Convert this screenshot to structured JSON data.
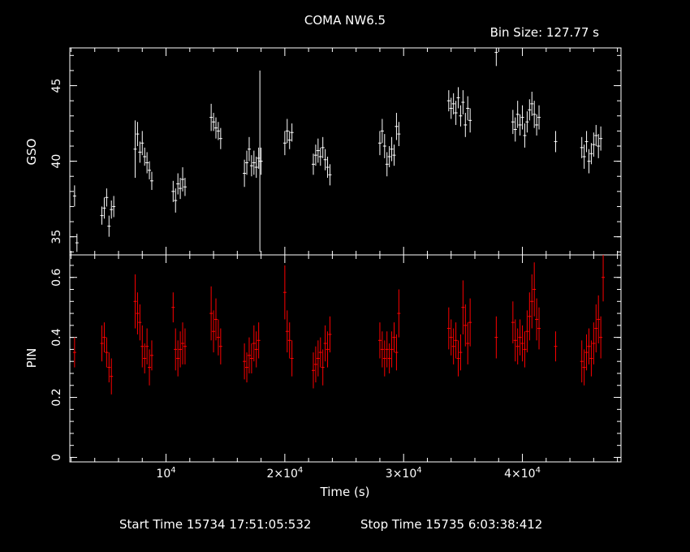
{
  "title": "COMA NW6.5",
  "bin_size_text": "Bin Size:  127.77 s",
  "footer": {
    "start": "Start Time 15734 17:51:05:532",
    "stop": "Stop Time 15735  6:03:38:412"
  },
  "colors": {
    "background": "#000000",
    "gso": "#ffffff",
    "pin": "#ff0000",
    "frame": "#ffffff"
  },
  "chart_data": [
    {
      "type": "scatter",
      "name": "gso-panel",
      "ylabel": "GSO",
      "ylim": [
        33.8,
        47.5
      ],
      "xlim": [
        1900,
        48300
      ],
      "yticks": [
        35,
        40,
        45
      ],
      "series": [
        {
          "points": [
            [
              2300,
              37.7,
              0.7
            ],
            [
              2500,
              34.6,
              0.6
            ],
            [
              4600,
              36.4,
              0.6
            ],
            [
              4800,
              36.9,
              0.7
            ],
            [
              5000,
              37.6,
              0.6
            ],
            [
              5200,
              35.7,
              0.7
            ],
            [
              5400,
              36.8,
              0.6
            ],
            [
              5600,
              37.0,
              0.7
            ],
            [
              7400,
              40.8,
              1.9
            ],
            [
              7600,
              41.8,
              0.8
            ],
            [
              7800,
              40.6,
              0.7
            ],
            [
              8000,
              41.2,
              0.8
            ],
            [
              8200,
              40.3,
              0.6
            ],
            [
              8400,
              39.9,
              0.7
            ],
            [
              8600,
              39.4,
              0.6
            ],
            [
              8800,
              38.7,
              0.6
            ],
            [
              10600,
              38.0,
              0.7
            ],
            [
              10800,
              37.4,
              0.8
            ],
            [
              11000,
              38.5,
              0.7
            ],
            [
              11200,
              38.2,
              0.7
            ],
            [
              11400,
              38.8,
              0.8
            ],
            [
              11600,
              38.3,
              0.6
            ],
            [
              13800,
              42.9,
              0.9
            ],
            [
              14000,
              42.6,
              0.6
            ],
            [
              14200,
              42.2,
              0.7
            ],
            [
              14400,
              42.0,
              0.6
            ],
            [
              14600,
              41.5,
              0.7
            ],
            [
              16600,
              39.2,
              0.9
            ],
            [
              16800,
              39.9,
              0.8
            ],
            [
              17000,
              40.8,
              0.8
            ],
            [
              17200,
              39.7,
              0.7
            ],
            [
              17400,
              39.9,
              0.8
            ],
            [
              17600,
              39.6,
              0.7
            ],
            [
              17800,
              40.2,
              0.7
            ],
            [
              18000,
              40.0,
              0.9
            ],
            [
              17900,
              40.0,
              6.0
            ],
            [
              20000,
              41.2,
              0.8
            ],
            [
              20200,
              42.0,
              0.8
            ],
            [
              20400,
              41.4,
              0.6
            ],
            [
              20600,
              41.9,
              0.6
            ],
            [
              22400,
              39.8,
              0.7
            ],
            [
              22600,
              40.4,
              0.7
            ],
            [
              22800,
              40.7,
              0.8
            ],
            [
              23000,
              40.3,
              0.6
            ],
            [
              23200,
              40.9,
              0.7
            ],
            [
              23400,
              40.1,
              0.7
            ],
            [
              23600,
              39.6,
              0.7
            ],
            [
              23800,
              39.1,
              0.7
            ],
            [
              28000,
              41.2,
              0.8
            ],
            [
              28200,
              42.0,
              0.8
            ],
            [
              28400,
              41.0,
              0.8
            ],
            [
              28600,
              39.8,
              0.8
            ],
            [
              28800,
              40.3,
              0.7
            ],
            [
              29000,
              40.8,
              0.8
            ],
            [
              29200,
              40.4,
              0.7
            ],
            [
              29400,
              42.3,
              0.9
            ],
            [
              29600,
              41.8,
              0.8
            ],
            [
              33800,
              44.0,
              0.7
            ],
            [
              34000,
              43.5,
              0.7
            ],
            [
              34200,
              43.8,
              0.7
            ],
            [
              34400,
              43.2,
              0.8
            ],
            [
              34600,
              44.2,
              0.7
            ],
            [
              34800,
              43.0,
              0.7
            ],
            [
              35000,
              43.9,
              0.8
            ],
            [
              35200,
              42.4,
              0.8
            ],
            [
              35400,
              43.5,
              0.8
            ],
            [
              35600,
              42.7,
              0.8
            ],
            [
              37800,
              47.2,
              0.9
            ],
            [
              39200,
              42.6,
              0.8
            ],
            [
              39400,
              42.1,
              0.8
            ],
            [
              39600,
              43.1,
              0.9
            ],
            [
              39800,
              42.4,
              0.7
            ],
            [
              40000,
              42.9,
              0.8
            ],
            [
              40200,
              41.7,
              0.8
            ],
            [
              40400,
              42.6,
              0.7
            ],
            [
              40600,
              43.4,
              0.7
            ],
            [
              40800,
              43.8,
              0.8
            ],
            [
              41000,
              43.1,
              0.9
            ],
            [
              41200,
              42.4,
              0.7
            ],
            [
              41400,
              42.9,
              0.8
            ],
            [
              42800,
              41.3,
              0.7
            ],
            [
              45000,
              40.9,
              0.7
            ],
            [
              45200,
              40.3,
              0.8
            ],
            [
              45400,
              41.3,
              0.7
            ],
            [
              45600,
              40.0,
              0.8
            ],
            [
              45800,
              40.5,
              0.7
            ],
            [
              46000,
              41.1,
              0.8
            ],
            [
              46200,
              41.7,
              0.7
            ],
            [
              46400,
              41.0,
              0.8
            ],
            [
              46600,
              41.5,
              0.8
            ]
          ]
        }
      ]
    },
    {
      "type": "scatter",
      "name": "pin-panel",
      "ylabel": "PIN",
      "xlabel": "Time (s)",
      "ylim": [
        -0.015,
        0.675
      ],
      "xlim": [
        1900,
        48300
      ],
      "yticks": [
        0,
        0.2,
        0.4,
        0.6
      ],
      "yticklabels": [
        "0",
        "0.2",
        "0.4",
        "0.6"
      ],
      "xticks": [
        10000,
        20000,
        30000,
        40000
      ],
      "xticklabels": [
        [
          "10",
          "4"
        ],
        [
          "2×10",
          "4"
        ],
        [
          "3×10",
          "4"
        ],
        [
          "4×10",
          "4"
        ]
      ],
      "series": [
        {
          "points": [
            [
              2300,
              0.35,
              0.05
            ],
            [
              4600,
              0.38,
              0.06
            ],
            [
              4800,
              0.4,
              0.05
            ],
            [
              5000,
              0.35,
              0.05
            ],
            [
              5200,
              0.3,
              0.05
            ],
            [
              5400,
              0.27,
              0.06
            ],
            [
              7400,
              0.52,
              0.09
            ],
            [
              7600,
              0.48,
              0.07
            ],
            [
              7800,
              0.45,
              0.06
            ],
            [
              8000,
              0.37,
              0.07
            ],
            [
              8200,
              0.33,
              0.05
            ],
            [
              8400,
              0.37,
              0.06
            ],
            [
              8600,
              0.3,
              0.06
            ],
            [
              8800,
              0.34,
              0.05
            ],
            [
              10600,
              0.5,
              0.05
            ],
            [
              10800,
              0.36,
              0.07
            ],
            [
              11000,
              0.33,
              0.06
            ],
            [
              11200,
              0.36,
              0.06
            ],
            [
              11400,
              0.38,
              0.07
            ],
            [
              11600,
              0.37,
              0.06
            ],
            [
              13800,
              0.48,
              0.09
            ],
            [
              14000,
              0.42,
              0.07
            ],
            [
              14200,
              0.46,
              0.07
            ],
            [
              14400,
              0.4,
              0.06
            ],
            [
              14600,
              0.37,
              0.06
            ],
            [
              16600,
              0.32,
              0.06
            ],
            [
              16800,
              0.3,
              0.05
            ],
            [
              17000,
              0.34,
              0.06
            ],
            [
              17200,
              0.33,
              0.05
            ],
            [
              17400,
              0.38,
              0.06
            ],
            [
              17600,
              0.36,
              0.06
            ],
            [
              17800,
              0.39,
              0.06
            ],
            [
              20000,
              0.55,
              0.09
            ],
            [
              20200,
              0.42,
              0.07
            ],
            [
              20400,
              0.39,
              0.06
            ],
            [
              20600,
              0.33,
              0.06
            ],
            [
              22400,
              0.29,
              0.06
            ],
            [
              22600,
              0.31,
              0.06
            ],
            [
              22800,
              0.33,
              0.06
            ],
            [
              23000,
              0.35,
              0.05
            ],
            [
              23200,
              0.3,
              0.06
            ],
            [
              23400,
              0.38,
              0.06
            ],
            [
              23600,
              0.36,
              0.06
            ],
            [
              23800,
              0.41,
              0.06
            ],
            [
              28000,
              0.39,
              0.06
            ],
            [
              28200,
              0.36,
              0.06
            ],
            [
              28400,
              0.33,
              0.06
            ],
            [
              28600,
              0.36,
              0.06
            ],
            [
              28800,
              0.33,
              0.05
            ],
            [
              29000,
              0.36,
              0.06
            ],
            [
              29200,
              0.4,
              0.05
            ],
            [
              29400,
              0.35,
              0.06
            ],
            [
              29600,
              0.48,
              0.08
            ],
            [
              33800,
              0.43,
              0.07
            ],
            [
              34000,
              0.4,
              0.06
            ],
            [
              34200,
              0.37,
              0.06
            ],
            [
              34400,
              0.39,
              0.06
            ],
            [
              34600,
              0.33,
              0.06
            ],
            [
              34800,
              0.35,
              0.06
            ],
            [
              35000,
              0.5,
              0.09
            ],
            [
              35200,
              0.44,
              0.07
            ],
            [
              35400,
              0.38,
              0.07
            ],
            [
              35600,
              0.45,
              0.08
            ],
            [
              37800,
              0.4,
              0.07
            ],
            [
              39200,
              0.45,
              0.07
            ],
            [
              39400,
              0.39,
              0.07
            ],
            [
              39600,
              0.37,
              0.06
            ],
            [
              39800,
              0.4,
              0.06
            ],
            [
              40000,
              0.38,
              0.06
            ],
            [
              40200,
              0.36,
              0.06
            ],
            [
              40400,
              0.42,
              0.07
            ],
            [
              40600,
              0.47,
              0.08
            ],
            [
              40800,
              0.52,
              0.09
            ],
            [
              41000,
              0.56,
              0.09
            ],
            [
              41200,
              0.46,
              0.07
            ],
            [
              41400,
              0.43,
              0.07
            ],
            [
              42800,
              0.37,
              0.05
            ],
            [
              45000,
              0.32,
              0.07
            ],
            [
              45200,
              0.3,
              0.06
            ],
            [
              45400,
              0.35,
              0.06
            ],
            [
              45600,
              0.37,
              0.06
            ],
            [
              45800,
              0.33,
              0.06
            ],
            [
              46000,
              0.38,
              0.07
            ],
            [
              46200,
              0.43,
              0.08
            ],
            [
              46400,
              0.46,
              0.08
            ],
            [
              46600,
              0.4,
              0.07
            ],
            [
              46800,
              0.6,
              0.08
            ]
          ]
        }
      ]
    }
  ]
}
